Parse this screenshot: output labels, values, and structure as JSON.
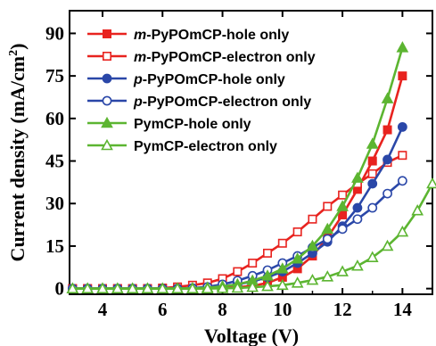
{
  "chart_data": {
    "type": "line",
    "xlabel": "Voltage (V)",
    "ylabel": "Current density (mA/cm",
    "ylabel_sup": "2",
    "ylabel_end": ")",
    "xlim": [
      2.9,
      15.0
    ],
    "ylim": [
      -2,
      98
    ],
    "xticks": [
      4,
      6,
      8,
      10,
      12,
      14
    ],
    "yticks": [
      0,
      15,
      30,
      45,
      60,
      75,
      90
    ],
    "xtick_labels": [
      "4",
      "6",
      "8",
      "10",
      "12",
      "14"
    ],
    "ytick_labels": [
      "0",
      "15",
      "30",
      "45",
      "60",
      "75",
      "90"
    ],
    "legend_position": "top-left",
    "series": [
      {
        "name": "m-PyPOmCP-hole only",
        "name_prefix": "m",
        "name_rest": "-PyPOmCP-hole only",
        "color": "#e8231f",
        "marker": "square",
        "filled": true,
        "x": [
          3.0,
          3.5,
          4.0,
          4.5,
          5.0,
          5.5,
          6.0,
          6.5,
          7.0,
          7.5,
          8.0,
          8.5,
          9.0,
          9.5,
          10.0,
          10.5,
          11.0,
          11.5,
          12.0,
          12.5,
          13.0,
          13.5,
          14.0
        ],
        "y": [
          0,
          0,
          0,
          0,
          0,
          0,
          0,
          0,
          0,
          0.1,
          0.2,
          0.5,
          1.0,
          2.0,
          4.0,
          7.0,
          11.5,
          18.0,
          26.0,
          35.0,
          45.0,
          56.0,
          75.0
        ]
      },
      {
        "name": "m-PyPOmCP-electron only",
        "name_prefix": "m",
        "name_rest": "-PyPOmCP-electron only",
        "color": "#e8231f",
        "marker": "square",
        "filled": false,
        "x": [
          3.0,
          3.5,
          4.0,
          4.5,
          5.0,
          5.5,
          6.0,
          6.5,
          7.0,
          7.5,
          8.0,
          8.5,
          9.0,
          9.5,
          10.0,
          10.5,
          11.0,
          11.5,
          12.0,
          12.5,
          13.0,
          13.5,
          14.0
        ],
        "y": [
          0,
          0,
          0,
          0,
          0,
          0,
          0.2,
          0.6,
          1.2,
          2.0,
          3.5,
          6.0,
          9.0,
          12.5,
          16.0,
          20.0,
          24.5,
          29.0,
          33.0,
          37.0,
          40.5,
          44.5,
          47.0
        ]
      },
      {
        "name": "p-PyPOmCP-hole only",
        "name_prefix": "p",
        "name_rest": "-PyPOmCP-hole only",
        "color": "#2a47a8",
        "marker": "circle",
        "filled": true,
        "x": [
          3.0,
          3.5,
          4.0,
          4.5,
          5.0,
          5.5,
          6.0,
          6.5,
          7.0,
          7.5,
          8.0,
          8.5,
          9.0,
          9.5,
          10.0,
          10.5,
          11.0,
          11.5,
          12.0,
          12.5,
          13.0,
          13.5,
          14.0
        ],
        "y": [
          0,
          0,
          0,
          0,
          0,
          0,
          0,
          0,
          0.1,
          0.3,
          0.8,
          1.5,
          2.5,
          4.0,
          6.0,
          9.0,
          12.5,
          16.5,
          22.0,
          28.5,
          37.0,
          45.5,
          57.0
        ]
      },
      {
        "name": "p-PyPOmCP-electron only",
        "name_prefix": "p",
        "name_rest": "-PyPOmCP-electron only",
        "color": "#2a47a8",
        "marker": "circle",
        "filled": false,
        "x": [
          3.0,
          3.5,
          4.0,
          4.5,
          5.0,
          5.5,
          6.0,
          6.5,
          7.0,
          7.5,
          8.0,
          8.5,
          9.0,
          9.5,
          10.0,
          10.5,
          11.0,
          11.5,
          12.0,
          12.5,
          13.0,
          13.5,
          14.0
        ],
        "y": [
          0,
          0,
          0,
          0,
          0,
          0,
          0,
          0,
          0.2,
          0.6,
          1.5,
          2.8,
          4.5,
          6.5,
          9.0,
          11.5,
          14.5,
          17.5,
          21.0,
          24.5,
          28.5,
          33.5,
          38.0
        ]
      },
      {
        "name": "PymCP-hole only",
        "name_prefix": "",
        "name_rest": "PymCP-hole only",
        "color": "#5cb531",
        "marker": "triangle",
        "filled": true,
        "x": [
          3.0,
          3.5,
          4.0,
          4.5,
          5.0,
          5.5,
          6.0,
          6.5,
          7.0,
          7.5,
          8.0,
          8.5,
          9.0,
          9.5,
          10.0,
          10.5,
          11.0,
          11.5,
          12.0,
          12.5,
          13.0,
          13.5,
          14.0
        ],
        "y": [
          0,
          0,
          0,
          0,
          0,
          0,
          0,
          0,
          0.1,
          0.3,
          0.8,
          1.5,
          2.8,
          4.5,
          7.0,
          10.5,
          15.0,
          21.0,
          29.0,
          39.0,
          51.0,
          67.0,
          85.0
        ]
      },
      {
        "name": "PymCP-electron only",
        "name_prefix": "",
        "name_rest": "PymCP-electron only",
        "color": "#5cb531",
        "marker": "triangle",
        "filled": false,
        "x": [
          3.0,
          3.5,
          4.0,
          4.5,
          5.0,
          5.5,
          6.0,
          6.5,
          7.0,
          7.5,
          8.0,
          8.5,
          9.0,
          9.5,
          10.0,
          10.5,
          11.0,
          11.5,
          12.0,
          12.5,
          13.0,
          13.5,
          14.0,
          14.5,
          15.0
        ],
        "y": [
          0,
          0,
          0,
          0,
          0,
          0,
          0,
          0,
          0,
          0,
          0.1,
          0.2,
          0.5,
          0.8,
          1.2,
          2.0,
          3.0,
          4.2,
          6.0,
          8.0,
          11.0,
          15.0,
          20.0,
          27.5,
          37.0
        ]
      }
    ]
  }
}
